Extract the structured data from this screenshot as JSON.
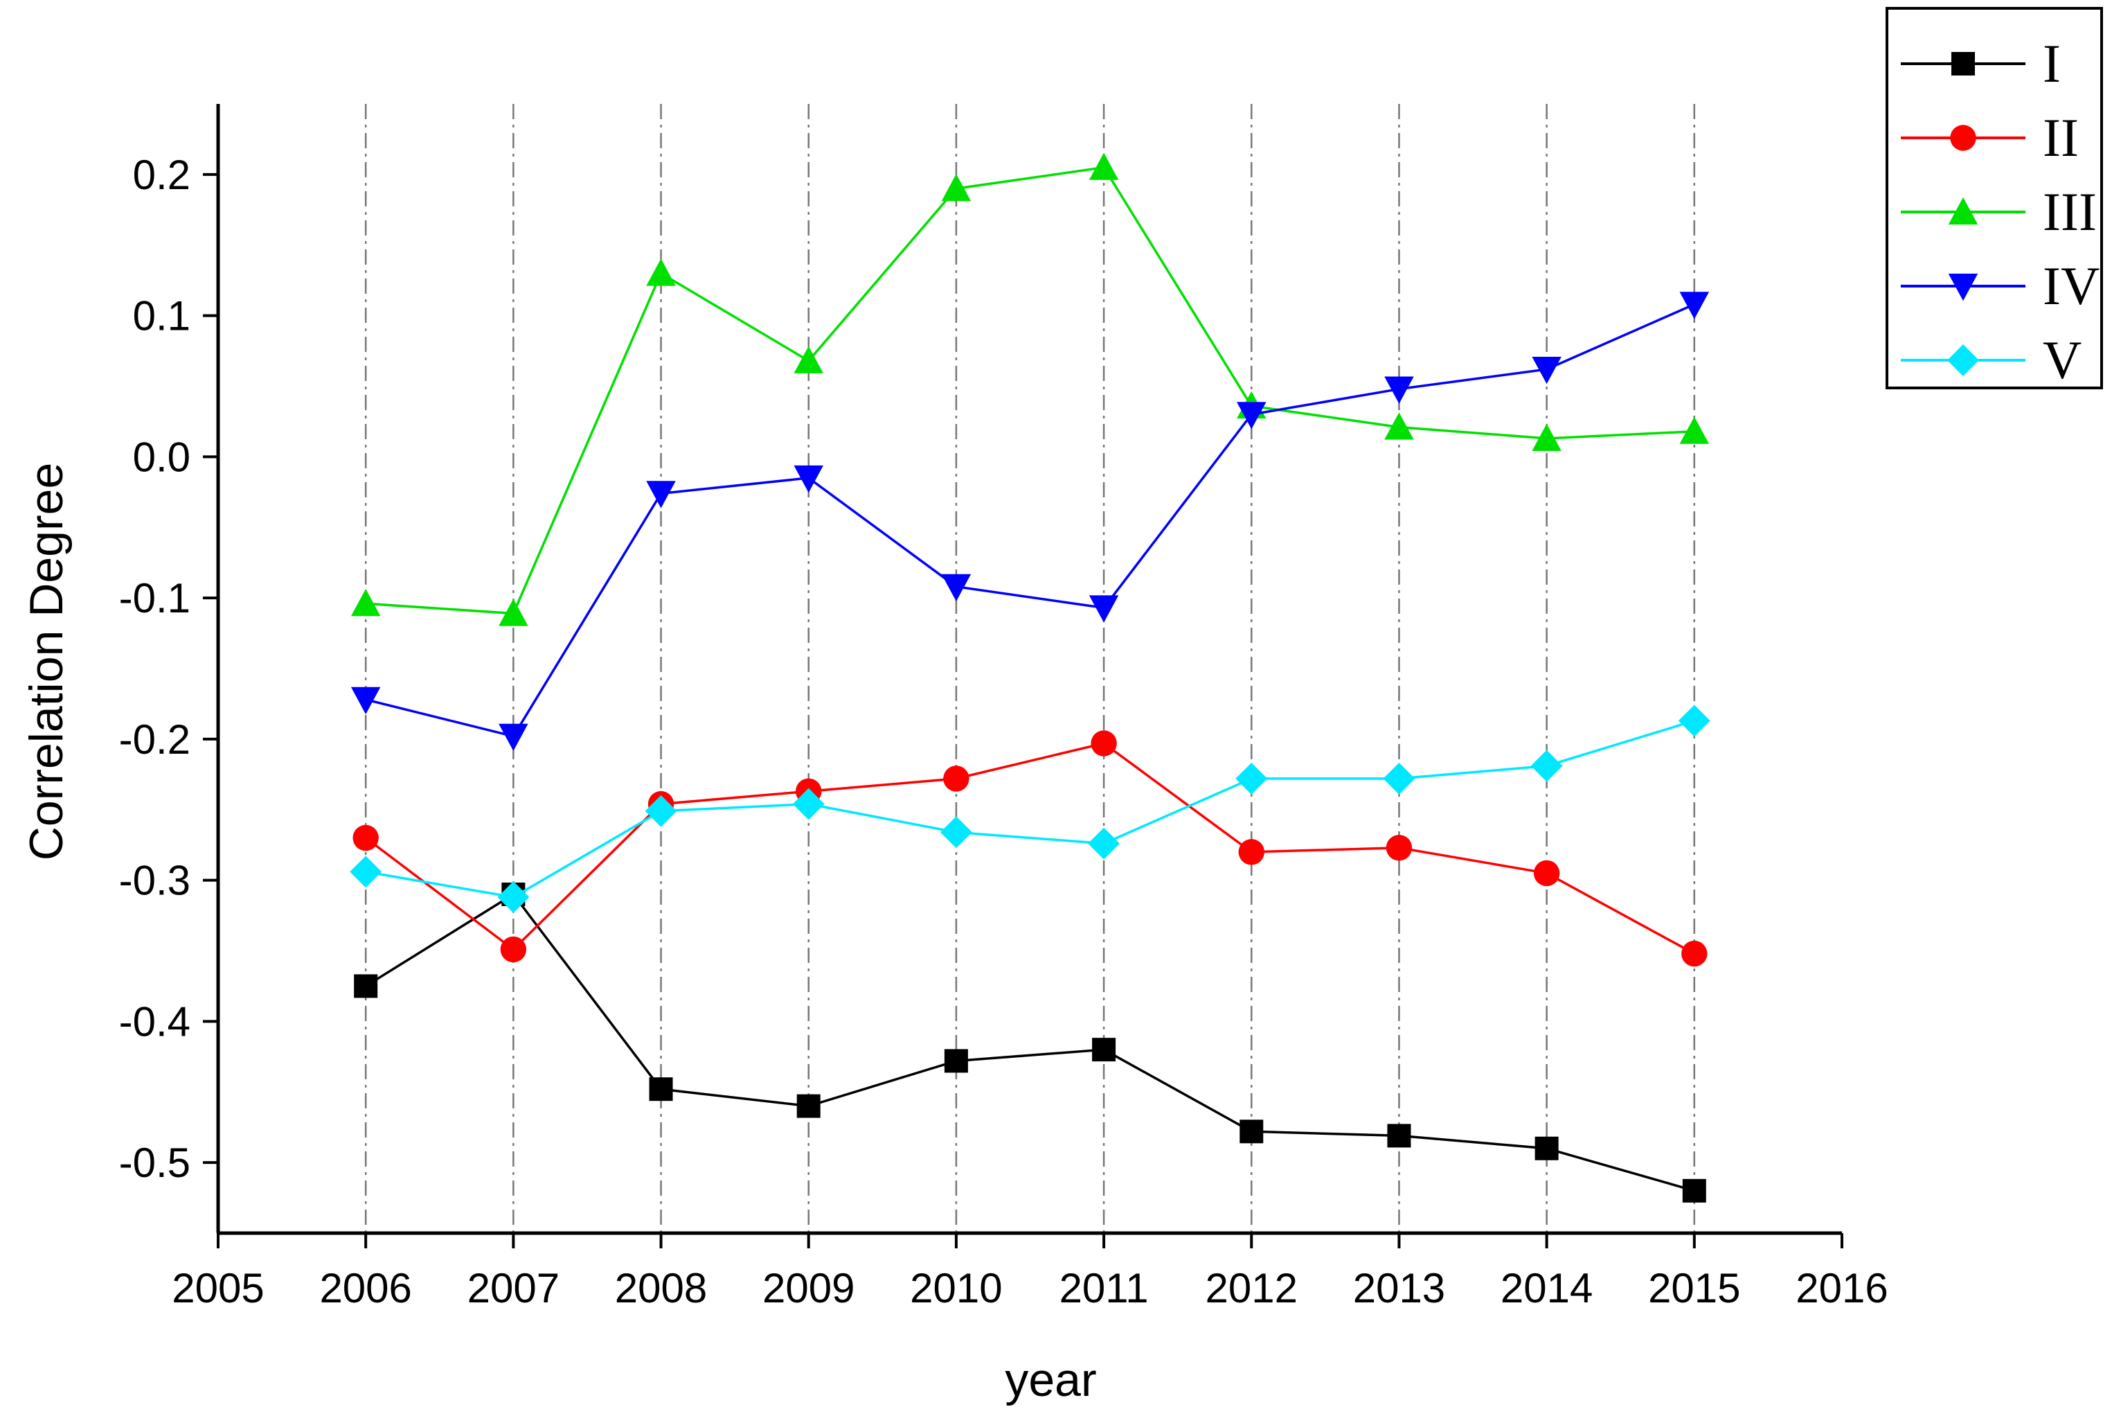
{
  "chart_data": {
    "type": "line",
    "xlabel": "year",
    "ylabel": "Correlation Degree",
    "xlim": [
      2005,
      2016
    ],
    "ylim": [
      -0.55,
      0.25
    ],
    "x_ticks": [
      2005,
      2006,
      2007,
      2008,
      2009,
      2010,
      2011,
      2012,
      2013,
      2014,
      2015,
      2016
    ],
    "y_ticks": [
      -0.5,
      -0.4,
      -0.3,
      -0.2,
      -0.1,
      0.0,
      0.1,
      0.2
    ],
    "x_tick_labels": [
      "2005",
      "2006",
      "2007",
      "2008",
      "2009",
      "2010",
      "2011",
      "2012",
      "2013",
      "2014",
      "2015",
      "2016"
    ],
    "y_tick_labels": [
      "-0.5",
      "-0.4",
      "-0.3",
      "-0.2",
      "-0.1",
      "0.0",
      "0.1",
      "0.2"
    ],
    "vertical_grid": "dash-dot at each year 2006–2015",
    "legend_position": "top-right",
    "categories": [
      2006,
      2007,
      2008,
      2009,
      2010,
      2011,
      2012,
      2013,
      2014,
      2015
    ],
    "series": [
      {
        "name": "I",
        "color": "#000000",
        "marker": "square",
        "values": [
          -0.375,
          -0.31,
          -0.448,
          -0.46,
          -0.428,
          -0.42,
          -0.478,
          -0.481,
          -0.49,
          -0.52
        ]
      },
      {
        "name": "II",
        "color": "#ff0000",
        "marker": "circle",
        "values": [
          -0.27,
          -0.349,
          -0.246,
          -0.237,
          -0.228,
          -0.203,
          -0.28,
          -0.277,
          -0.295,
          -0.352
        ]
      },
      {
        "name": "III",
        "color": "#00e000",
        "marker": "triangle-up",
        "values": [
          -0.104,
          -0.111,
          0.13,
          0.068,
          0.19,
          0.205,
          0.036,
          0.021,
          0.013,
          0.018
        ]
      },
      {
        "name": "IV",
        "color": "#0000ff",
        "marker": "triangle-down",
        "values": [
          -0.172,
          -0.198,
          -0.026,
          -0.015,
          -0.092,
          -0.107,
          0.03,
          0.048,
          0.062,
          0.108
        ]
      },
      {
        "name": "V",
        "color": "#00e8ff",
        "marker": "diamond",
        "values": [
          -0.294,
          -0.312,
          -0.251,
          -0.246,
          -0.266,
          -0.274,
          -0.228,
          -0.228,
          -0.219,
          -0.187
        ]
      }
    ]
  }
}
